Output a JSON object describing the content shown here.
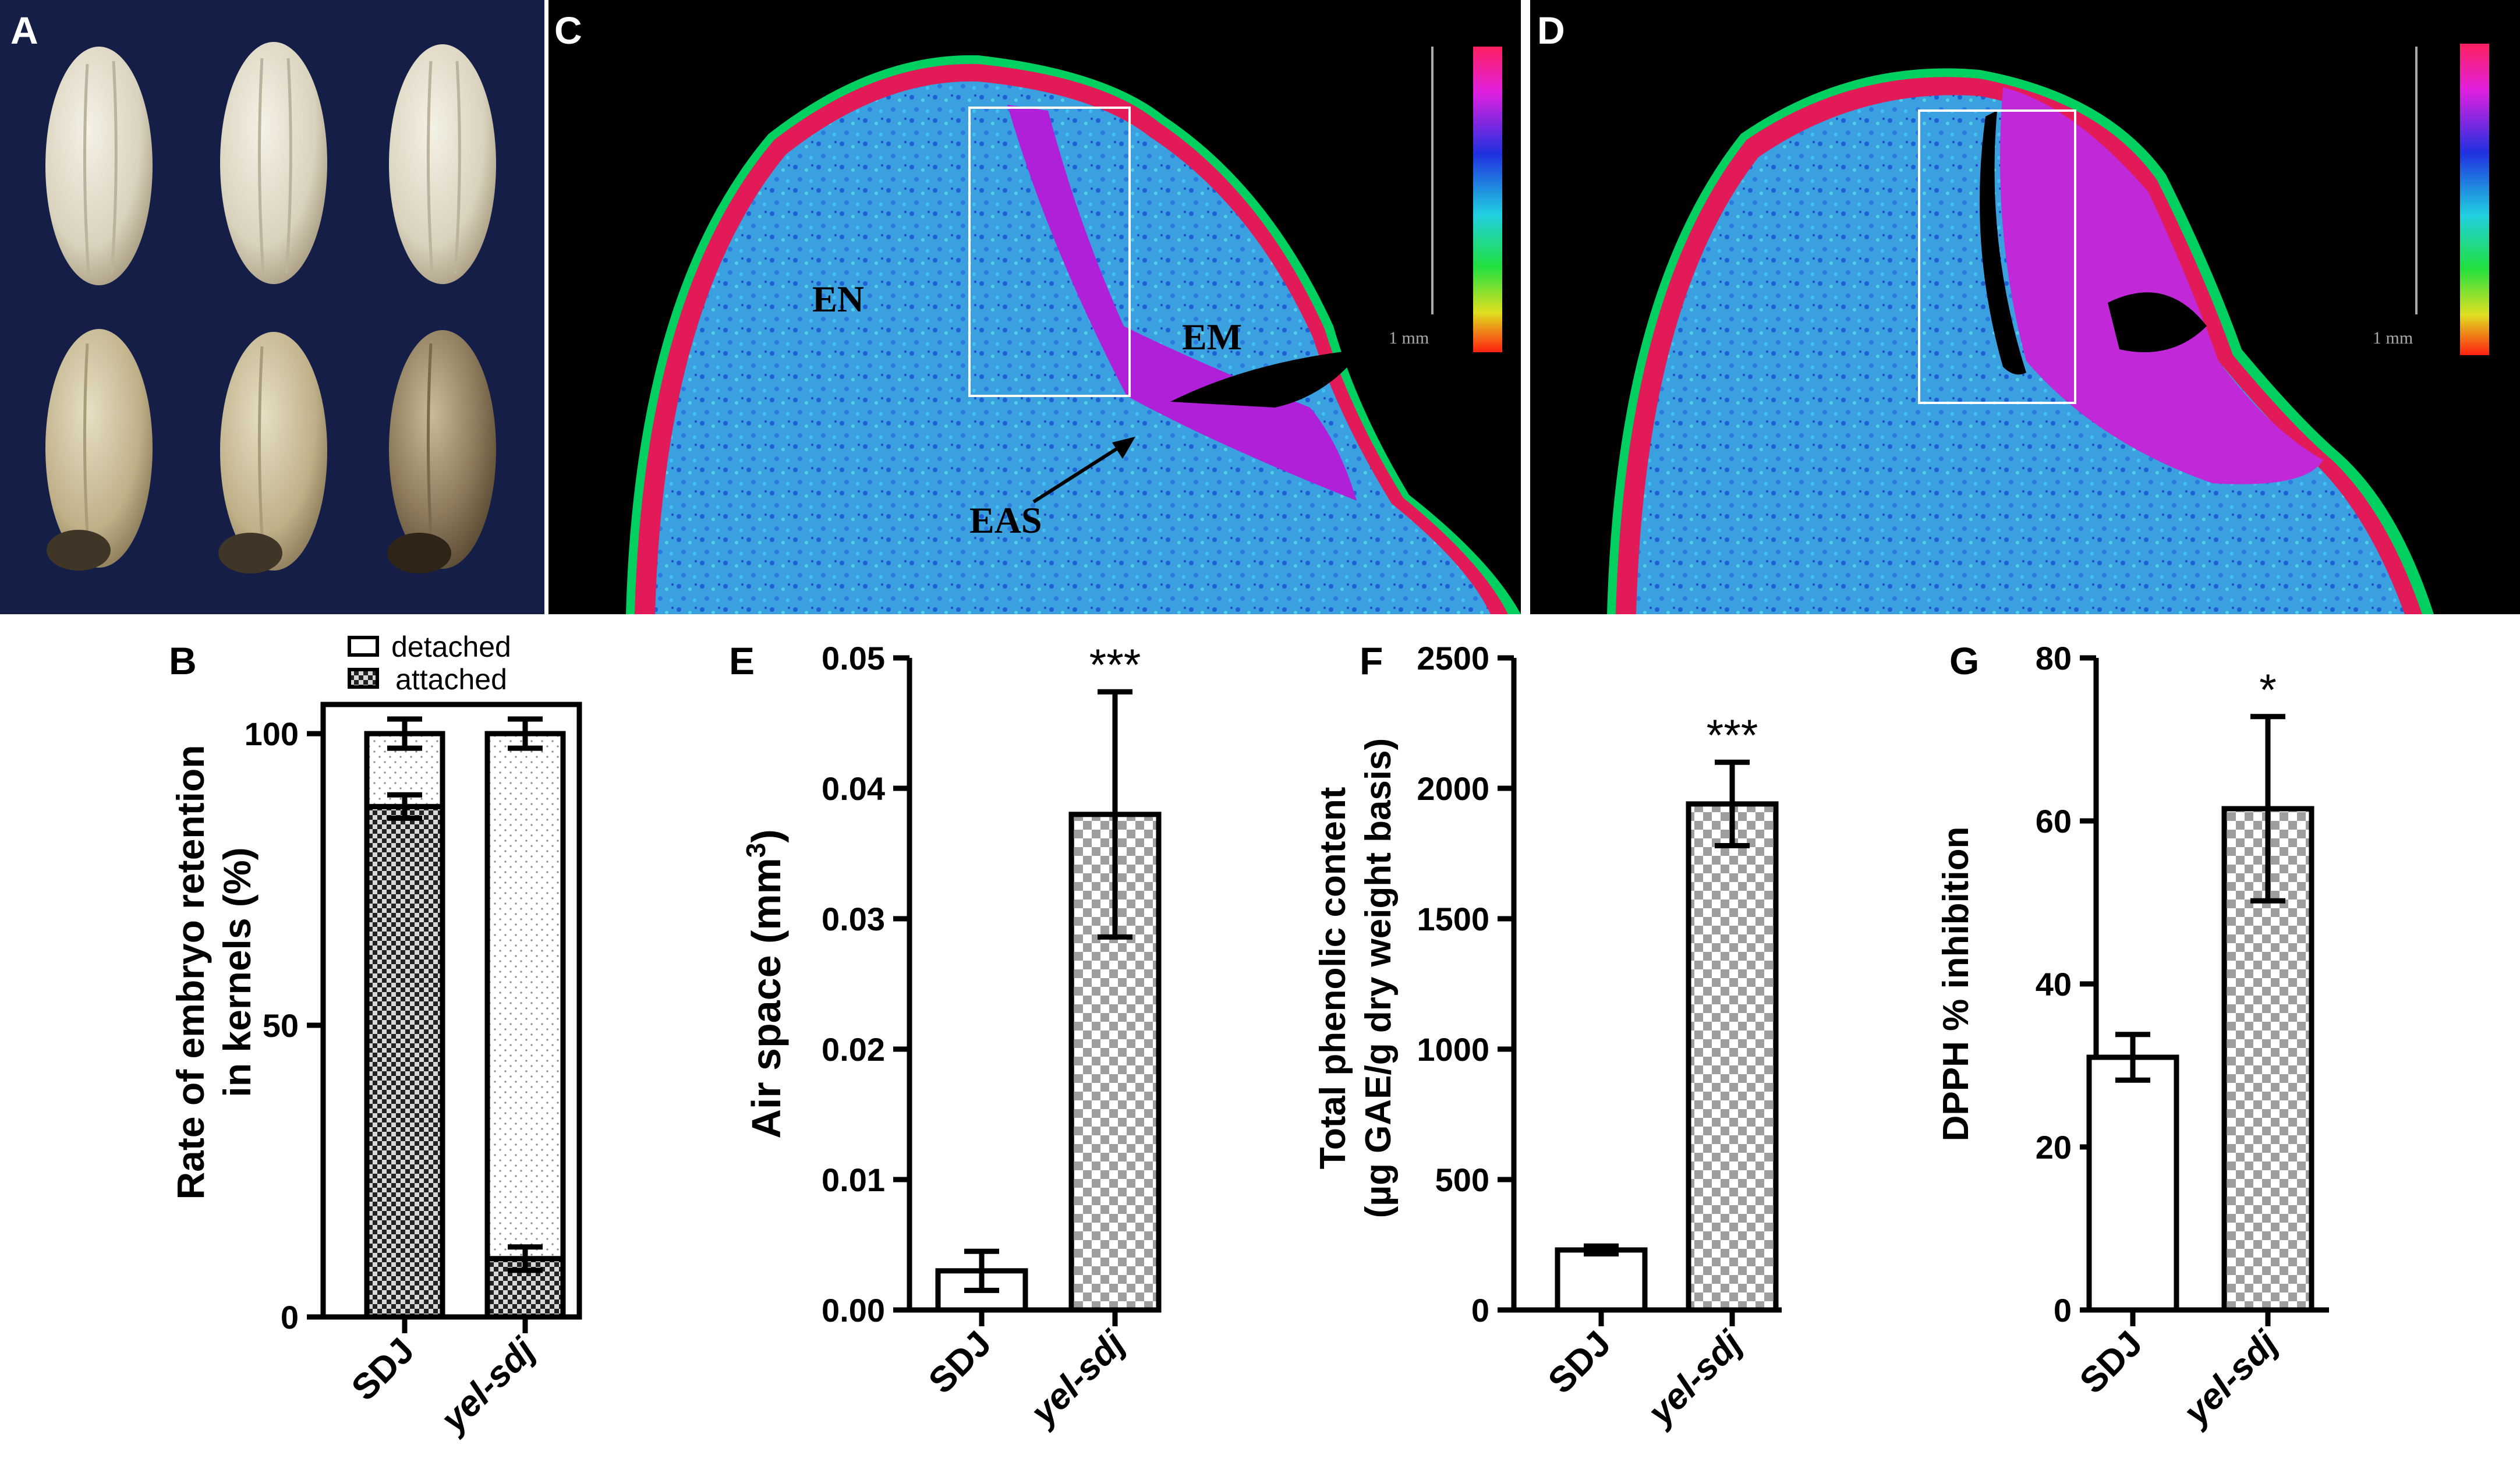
{
  "panel_labels": {
    "A": "A",
    "B": "B",
    "C": "C",
    "D": "D",
    "E": "E",
    "F": "F",
    "G": "G"
  },
  "image_c": {
    "en": "EN",
    "em": "EM",
    "eas": "EAS",
    "scale": "1 mm"
  },
  "image_d": {
    "scale": "1 mm"
  },
  "colors": {
    "black": "#000000",
    "white": "#ffffff",
    "checker": "#9e9e9e",
    "attached_fill": "#3a3a3a"
  },
  "chart_data": [
    {
      "id": "B",
      "type": "bar",
      "stacked": true,
      "categories": [
        "SDJ",
        "yel-sdj"
      ],
      "series": [
        {
          "name": "attached",
          "values": [
            87.5,
            10
          ],
          "errors": [
            2,
            2
          ]
        },
        {
          "name": "detached",
          "values": [
            12.5,
            90
          ],
          "errors": [
            2.5,
            2.5
          ]
        }
      ],
      "legend": [
        "detached",
        "attached"
      ],
      "ylabel_line1": "Rate of embryo retention",
      "ylabel_line2": "in kernels (%)",
      "ylim": [
        0,
        105
      ],
      "yticks": [
        {
          "v": 0,
          "t": "0"
        },
        {
          "v": 50,
          "t": "50"
        },
        {
          "v": 100,
          "t": "100"
        }
      ]
    },
    {
      "id": "E",
      "type": "bar",
      "categories": [
        "SDJ",
        "yel-sdj"
      ],
      "values": [
        0.003,
        0.038
      ],
      "errors": [
        0.0015,
        0.0094
      ],
      "significance": [
        "",
        "***"
      ],
      "ylabel_main": "Air space (mm",
      "ylabel_sup": "3",
      "ylabel_end": ")",
      "ylim": [
        0,
        0.05
      ],
      "yticks": [
        {
          "v": 0,
          "t": "0.00"
        },
        {
          "v": 0.01,
          "t": "0.01"
        },
        {
          "v": 0.02,
          "t": "0.02"
        },
        {
          "v": 0.03,
          "t": "0.03"
        },
        {
          "v": 0.04,
          "t": "0.04"
        },
        {
          "v": 0.05,
          "t": "0.05"
        }
      ]
    },
    {
      "id": "F",
      "type": "bar",
      "categories": [
        "SDJ",
        "yel-sdj"
      ],
      "values": [
        230,
        1940
      ],
      "errors": [
        15,
        160
      ],
      "significance": [
        "",
        "***"
      ],
      "ylabel_line1": "Total phenolic content",
      "ylabel_line2": "(µg GAE/g dry weight basis)",
      "ylim": [
        0,
        2500
      ],
      "yticks": [
        {
          "v": 0,
          "t": "0"
        },
        {
          "v": 500,
          "t": "500"
        },
        {
          "v": 1000,
          "t": "1000"
        },
        {
          "v": 1500,
          "t": "1500"
        },
        {
          "v": 2000,
          "t": "2000"
        },
        {
          "v": 2500,
          "t": "2500"
        }
      ]
    },
    {
      "id": "G",
      "type": "bar",
      "categories": [
        "SDJ",
        "yel-sdj"
      ],
      "values": [
        31,
        61.5
      ],
      "errors": [
        2.8,
        11.3
      ],
      "significance": [
        "",
        "*"
      ],
      "ylabel": "DPPH % inhibition",
      "ylim": [
        0,
        80
      ],
      "yticks": [
        {
          "v": 0,
          "t": "0"
        },
        {
          "v": 20,
          "t": "20"
        },
        {
          "v": 40,
          "t": "40"
        },
        {
          "v": 60,
          "t": "60"
        },
        {
          "v": 80,
          "t": "80"
        }
      ]
    }
  ]
}
